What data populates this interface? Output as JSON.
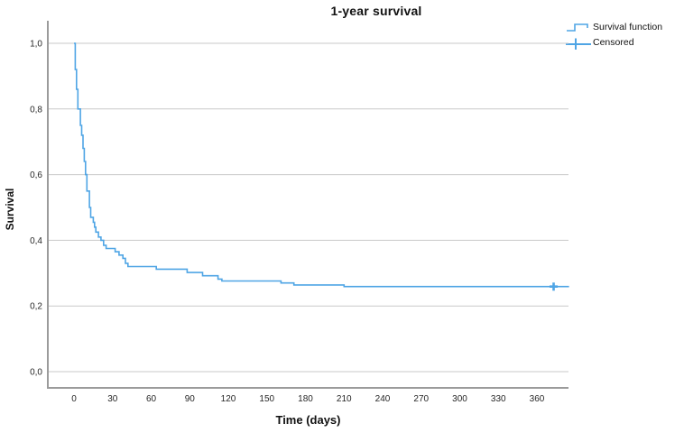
{
  "figure": {
    "title": "1-year survival",
    "background_color": "#ffffff"
  },
  "legend": {
    "items": [
      {
        "label": "Survival function",
        "glyph": "step-line-icon"
      },
      {
        "label": "Censored",
        "glyph": "plus-marker-icon"
      }
    ]
  },
  "chart_data": {
    "type": "line",
    "subtype": "kaplan-meier-step",
    "title": "1-year survival",
    "xlabel": "Time (days)",
    "ylabel": "Survival",
    "xlim": [
      -20,
      385
    ],
    "ylim": [
      0.0,
      1.0
    ],
    "x_ticks": [
      0,
      30,
      60,
      90,
      120,
      150,
      180,
      210,
      240,
      270,
      300,
      330,
      360
    ],
    "y_ticks": [
      0.0,
      0.2,
      0.4,
      0.6,
      0.8,
      1.0
    ],
    "y_tick_labels": [
      "0,0",
      "0,2",
      "0,4",
      "0,6",
      "0,8",
      "1,0"
    ],
    "grid": "horizontal-only",
    "legend_position": "top-right-outside",
    "series": [
      {
        "name": "Survival function",
        "color": "#4FA5E5",
        "points": [
          [
            0,
            1.0
          ],
          [
            1,
            0.92
          ],
          [
            2,
            0.86
          ],
          [
            3,
            0.8
          ],
          [
            5,
            0.75
          ],
          [
            6,
            0.72
          ],
          [
            7,
            0.68
          ],
          [
            8,
            0.64
          ],
          [
            9,
            0.6
          ],
          [
            10,
            0.55
          ],
          [
            12,
            0.5
          ],
          [
            13,
            0.47
          ],
          [
            15,
            0.455
          ],
          [
            16,
            0.44
          ],
          [
            17,
            0.425
          ],
          [
            19,
            0.41
          ],
          [
            21,
            0.4
          ],
          [
            23,
            0.385
          ],
          [
            25,
            0.375
          ],
          [
            32,
            0.365
          ],
          [
            35,
            0.355
          ],
          [
            38,
            0.345
          ],
          [
            40,
            0.33
          ],
          [
            42,
            0.32
          ],
          [
            64,
            0.312
          ],
          [
            88,
            0.302
          ],
          [
            100,
            0.292
          ],
          [
            112,
            0.282
          ],
          [
            115,
            0.276
          ],
          [
            161,
            0.27
          ],
          [
            171,
            0.264
          ],
          [
            210,
            0.259
          ],
          [
            385,
            0.259
          ]
        ]
      }
    ],
    "censored_points": [
      {
        "x": 373,
        "y": 0.259
      }
    ],
    "colors": {
      "curve": "#4FA5E5",
      "axis_line": "#9B9B9B",
      "gridline": "#C9C9C9",
      "tick_text": "#262626",
      "title_text": "#111111"
    }
  }
}
